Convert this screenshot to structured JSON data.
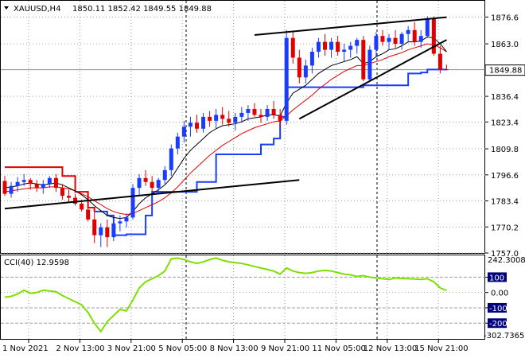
{
  "chart_data": [
    {
      "type": "candlestick",
      "symbol_header": "XAUUSD,H4",
      "ohlc_header": "1850.11 1852.42 1849.55 1849.88",
      "y_ticks": [
        1876.6,
        1863.0,
        1849.88,
        1836.4,
        1823.4,
        1809.8,
        1796.6,
        1783.4,
        1770.2,
        1757.0
      ],
      "current_price": 1849.88,
      "current_price_label": "1849.88",
      "ylim": [
        1757.0,
        1882.0
      ],
      "grid": "dotted",
      "x_labels": [
        "1 Nov 2021",
        "2 Nov 13:00",
        "3 Nov 21:00",
        "5 Nov 05:00",
        "8 Nov 13:00",
        "9 Nov 21:00",
        "11 Nov 05:00",
        "12 Nov 13:00",
        "15 Nov 21:00"
      ],
      "x_label_bar_index": [
        0,
        8,
        16,
        24,
        32,
        40,
        48,
        56,
        64
      ],
      "ohlc": [
        [
          1793.5,
          1796,
          1786,
          1787
        ],
        [
          1787,
          1793,
          1785,
          1791
        ],
        [
          1791,
          1795.5,
          1788,
          1793
        ],
        [
          1793,
          1797,
          1791,
          1794
        ],
        [
          1794,
          1795,
          1789,
          1792
        ],
        [
          1792,
          1794,
          1788,
          1790
        ],
        [
          1790,
          1794,
          1787,
          1792
        ],
        [
          1792,
          1796,
          1790,
          1795
        ],
        [
          1795,
          1797,
          1788,
          1790
        ],
        [
          1790,
          1792,
          1784,
          1786
        ],
        [
          1786,
          1789,
          1783,
          1785
        ],
        [
          1785,
          1787,
          1781,
          1782
        ],
        [
          1782,
          1784,
          1778,
          1779
        ],
        [
          1779,
          1781,
          1773,
          1774
        ],
        [
          1774,
          1778,
          1762,
          1766
        ],
        [
          1766,
          1772,
          1760,
          1770
        ],
        [
          1770,
          1774,
          1760,
          1765
        ],
        [
          1765,
          1774,
          1763,
          1772
        ],
        [
          1772,
          1776,
          1768,
          1773
        ],
        [
          1773,
          1777,
          1770,
          1775
        ],
        [
          1775,
          1792,
          1774,
          1790
        ],
        [
          1790,
          1797,
          1786,
          1795
        ],
        [
          1795,
          1799,
          1791,
          1793
        ],
        [
          1793,
          1796,
          1788,
          1790
        ],
        [
          1790,
          1795,
          1787,
          1794
        ],
        [
          1794,
          1801,
          1792,
          1799
        ],
        [
          1799,
          1812,
          1796,
          1810
        ],
        [
          1810,
          1818,
          1807,
          1816
        ],
        [
          1816,
          1824,
          1813,
          1821
        ],
        [
          1821,
          1826,
          1816,
          1823
        ],
        [
          1823,
          1827,
          1818,
          1820
        ],
        [
          1820,
          1828,
          1818,
          1826
        ],
        [
          1826,
          1829,
          1821,
          1824
        ],
        [
          1824,
          1830,
          1820,
          1827
        ],
        [
          1827,
          1831,
          1822,
          1825
        ],
        [
          1825,
          1829,
          1821,
          1823
        ],
        [
          1823,
          1828,
          1819,
          1826
        ],
        [
          1826,
          1831,
          1823,
          1828
        ],
        [
          1828,
          1832,
          1824,
          1830
        ],
        [
          1830,
          1833,
          1826,
          1827
        ],
        [
          1827,
          1830,
          1823,
          1826
        ],
        [
          1826,
          1832,
          1824,
          1830
        ],
        [
          1830,
          1834,
          1825,
          1827
        ],
        [
          1827,
          1830,
          1821,
          1824
        ],
        [
          1824,
          1870,
          1822,
          1866
        ],
        [
          1866,
          1869,
          1853,
          1856
        ],
        [
          1856,
          1860,
          1843,
          1846
        ],
        [
          1846,
          1855,
          1843,
          1852
        ],
        [
          1852,
          1861,
          1848,
          1859
        ],
        [
          1859,
          1866,
          1856,
          1864
        ],
        [
          1864,
          1868,
          1857,
          1860
        ],
        [
          1860,
          1866,
          1856,
          1864
        ],
        [
          1864,
          1867,
          1857,
          1859
        ],
        [
          1859,
          1863,
          1854,
          1860
        ],
        [
          1860,
          1864,
          1856,
          1862
        ],
        [
          1862,
          1866,
          1858,
          1865
        ],
        [
          1865,
          1867,
          1844,
          1845
        ],
        [
          1845,
          1862,
          1844,
          1860
        ],
        [
          1860,
          1869,
          1856,
          1867
        ],
        [
          1867,
          1870,
          1862,
          1864
        ],
        [
          1864,
          1868,
          1860,
          1866
        ],
        [
          1866,
          1870,
          1861,
          1863
        ],
        [
          1863,
          1869,
          1860,
          1868
        ],
        [
          1868,
          1872,
          1864,
          1870
        ],
        [
          1870,
          1874,
          1862,
          1864
        ],
        [
          1864,
          1870,
          1861,
          1867
        ],
        [
          1867,
          1877,
          1866,
          1876
        ],
        [
          1876,
          1877,
          1857,
          1858
        ],
        [
          1858,
          1862,
          1848,
          1850
        ],
        [
          1850.11,
          1852.42,
          1849.55,
          1849.88
        ]
      ],
      "ma_fast": [
        1790,
        1790.5,
        1791,
        1792,
        1792.5,
        1792,
        1791.5,
        1792,
        1792.5,
        1791.5,
        1790,
        1788.5,
        1786.5,
        1784,
        1781,
        1778.5,
        1776,
        1775,
        1774.5,
        1775,
        1778,
        1782,
        1785,
        1787,
        1789,
        1791.5,
        1795,
        1800,
        1805,
        1809,
        1812,
        1815,
        1818,
        1820,
        1821.5,
        1822,
        1822.5,
        1823.5,
        1825,
        1825.5,
        1826,
        1827,
        1827,
        1826.5,
        1833,
        1838,
        1840,
        1842,
        1845,
        1848,
        1850,
        1852,
        1853,
        1854,
        1855,
        1856.5,
        1853,
        1854,
        1856.5,
        1858,
        1860,
        1860.5,
        1862,
        1864,
        1864,
        1864.5,
        1866.5,
        1866,
        1863,
        1859
      ],
      "ma_slow": [
        1788,
        1788.5,
        1789,
        1789.5,
        1790,
        1790,
        1790,
        1790.5,
        1790.5,
        1790,
        1789.5,
        1788.5,
        1787,
        1785.5,
        1783.5,
        1781.5,
        1779.5,
        1778,
        1777,
        1776.5,
        1777,
        1778.5,
        1780,
        1781.5,
        1783,
        1785,
        1787.5,
        1790.5,
        1794,
        1797.5,
        1800.5,
        1803.5,
        1806.5,
        1809,
        1811.5,
        1813.5,
        1815.5,
        1817.5,
        1819,
        1820.5,
        1821.5,
        1822.5,
        1823.5,
        1824,
        1826.5,
        1829.5,
        1832,
        1834.5,
        1837,
        1840,
        1842.5,
        1845,
        1847,
        1849,
        1850.5,
        1852,
        1852,
        1853,
        1854,
        1855,
        1856.5,
        1857.5,
        1858.5,
        1860,
        1861,
        1862,
        1863,
        1862.5,
        1861,
        1859
      ],
      "trailing_stop": [
        {
          "value": 1800.5,
          "color": "#ff0000",
          "from": 0,
          "to": 7
        },
        {
          "value": 1800.5,
          "color": "#ff0000",
          "from": 7,
          "to": 11
        },
        {
          "value": 1778,
          "color": "#1a3cff",
          "from": 14,
          "to": 15
        },
        {
          "value": 1766,
          "color": "#1a3cff",
          "from": 16,
          "to": 19
        },
        {
          "value": 1766.5,
          "color": "#1a3cff",
          "from": 19,
          "to": 22
        },
        {
          "value": 1770,
          "color": "#1a3cff",
          "from": 22,
          "to": 23
        },
        {
          "value": 1788,
          "color": "#1a3cff",
          "from": 23,
          "to": 30
        },
        {
          "value": 1793,
          "color": "#1a3cff",
          "from": 30,
          "to": 33
        },
        {
          "value": 1807,
          "color": "#1a3cff",
          "from": 33,
          "to": 40
        },
        {
          "value": 1812,
          "color": "#1a3cff",
          "from": 40,
          "to": 43
        },
        {
          "value": 1841,
          "color": "#1a3cff",
          "from": 44,
          "to": 56
        },
        {
          "value": 1842,
          "color": "#1a3cff",
          "from": 56,
          "to": 63
        },
        {
          "value": 1848,
          "color": "#1a3cff",
          "from": 64,
          "to": 69
        }
      ],
      "red_stop_points": [
        [
          0,
          1800.5
        ],
        [
          7,
          1800.5
        ],
        [
          9,
          1796
        ],
        [
          11,
          1788
        ],
        [
          13,
          1780
        ],
        [
          14,
          1778
        ]
      ],
      "blue_stop_points": [
        [
          14,
          1778
        ],
        [
          15,
          1778
        ],
        [
          16,
          1776
        ],
        [
          17,
          1766
        ],
        [
          19,
          1766.5
        ],
        [
          21,
          1766.5
        ],
        [
          22,
          1776
        ],
        [
          23,
          1788
        ],
        [
          30,
          1793
        ],
        [
          33,
          1807
        ],
        [
          40,
          1812
        ],
        [
          42,
          1815
        ],
        [
          43,
          1826
        ],
        [
          44,
          1841
        ],
        [
          56,
          1842
        ],
        [
          63,
          1848
        ],
        [
          64,
          1848
        ],
        [
          65,
          1848.5
        ],
        [
          66,
          1850
        ],
        [
          69,
          1850
        ]
      ],
      "trendlines": [
        {
          "x1": 0,
          "y1": 1779.5,
          "x2": 46,
          "y2": 1794
        },
        {
          "x1": 39,
          "y1": 1867.5,
          "x2": 69,
          "y2": 1876.5
        },
        {
          "x1": 46,
          "y1": 1825,
          "x2": 69,
          "y2": 1865
        }
      ]
    },
    {
      "type": "line",
      "indicator_label": "CCI(40) 12.9598",
      "y_top_label": "242.3008",
      "y_bottom_label": "-302.7365",
      "levels": [
        100,
        0,
        -100,
        -200
      ],
      "level_labels": [
        "100",
        "0.00",
        "-100",
        "-200"
      ],
      "ylim": [
        -302.7365,
        242.3008
      ],
      "values": [
        -30,
        -25,
        -10,
        15,
        -5,
        0,
        15,
        10,
        5,
        -20,
        -40,
        -60,
        -80,
        -130,
        -200,
        -255,
        -190,
        -150,
        -110,
        -120,
        -50,
        30,
        70,
        90,
        110,
        140,
        220,
        225,
        215,
        200,
        190,
        200,
        215,
        225,
        210,
        200,
        195,
        190,
        180,
        170,
        160,
        150,
        140,
        120,
        160,
        140,
        130,
        125,
        130,
        140,
        145,
        140,
        130,
        120,
        115,
        105,
        110,
        100,
        95,
        90,
        85,
        95,
        92,
        90,
        88,
        85,
        90,
        70,
        30,
        12.9598
      ]
    }
  ]
}
